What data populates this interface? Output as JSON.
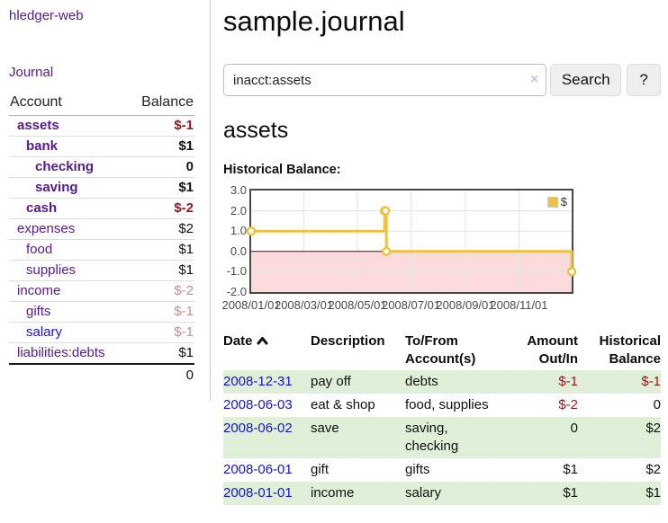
{
  "app": {
    "title": "hledger-web"
  },
  "sidebar": {
    "journal_link": "Journal",
    "accounts": {
      "header": {
        "account": "Account",
        "balance": "Balance"
      },
      "rows": [
        {
          "name": "assets",
          "balance": "$-1"
        },
        {
          "name": "bank",
          "balance": "$1"
        },
        {
          "name": "checking",
          "balance": "0"
        },
        {
          "name": "saving",
          "balance": "$1"
        },
        {
          "name": "cash",
          "balance": "$-2"
        },
        {
          "name": "expenses",
          "balance": "$2"
        },
        {
          "name": "food",
          "balance": "$1"
        },
        {
          "name": "supplies",
          "balance": "$1"
        },
        {
          "name": "income",
          "balance": "$-2"
        },
        {
          "name": "gifts",
          "balance": "$-1"
        },
        {
          "name": "salary",
          "balance": "$-1"
        },
        {
          "name": "liabilities:debts",
          "balance": "$1"
        }
      ],
      "total": "0"
    }
  },
  "main": {
    "title": "sample.journal",
    "search": {
      "value": "inacct:assets",
      "clear_icon": "×",
      "search_button": "Search",
      "help_button": "?"
    },
    "account_heading": "assets",
    "chart_heading": "Historical Balance:"
  },
  "chart_data": {
    "type": "line",
    "step": true,
    "title": "Historical Balance:",
    "series": [
      {
        "name": "$",
        "color": "#edc240",
        "points": [
          [
            "2008-01-01",
            1
          ],
          [
            "2008-06-01",
            2
          ],
          [
            "2008-06-02",
            2
          ],
          [
            "2008-06-03",
            0
          ],
          [
            "2008-12-31",
            -1
          ]
        ]
      }
    ],
    "x_range": [
      "2008-01-01",
      "2008-12-31"
    ],
    "ylim": [
      -2,
      3
    ],
    "y_ticks": [
      "3.0",
      "2.0",
      "1.0",
      "0.0",
      "-1.0",
      "-2.0"
    ],
    "x_ticks": [
      "2008/01/01",
      "2008/03/01",
      "2008/05/01",
      "2008/07/01",
      "2008/09/01",
      "2008/11/01"
    ],
    "grid": true,
    "negative_region_color": "#fbdbdb",
    "zero_line_color": "#7a0000",
    "legend": {
      "label": "$",
      "position": "top-right"
    }
  },
  "register": {
    "headers": {
      "date": "Date",
      "description": "Description",
      "accounts": "To/From Account(s)",
      "amount": "Amount Out/In",
      "balance": "Historical Balance"
    },
    "rows": [
      {
        "date": "2008-12-31",
        "description": "pay off",
        "accounts": "debts",
        "amount": "$-1",
        "balance": "$-1"
      },
      {
        "date": "2008-06-03",
        "description": "eat & shop",
        "accounts": "food, supplies",
        "amount": "$-2",
        "balance": "0"
      },
      {
        "date": "2008-06-02",
        "description": "save",
        "accounts": "saving, checking",
        "amount": "0",
        "balance": "$2"
      },
      {
        "date": "2008-06-01",
        "description": "gift",
        "accounts": "gifts",
        "amount": "$1",
        "balance": "$2"
      },
      {
        "date": "2008-01-01",
        "description": "income",
        "accounts": "salary",
        "amount": "$1",
        "balance": "$1"
      }
    ]
  },
  "ui_colors": {
    "link_purple": "#551a8b",
    "link_blue": "#1414d2",
    "negative_strong": "#95181d",
    "negative_pale": "#c98c8c",
    "row_green": "#e0efd8"
  }
}
